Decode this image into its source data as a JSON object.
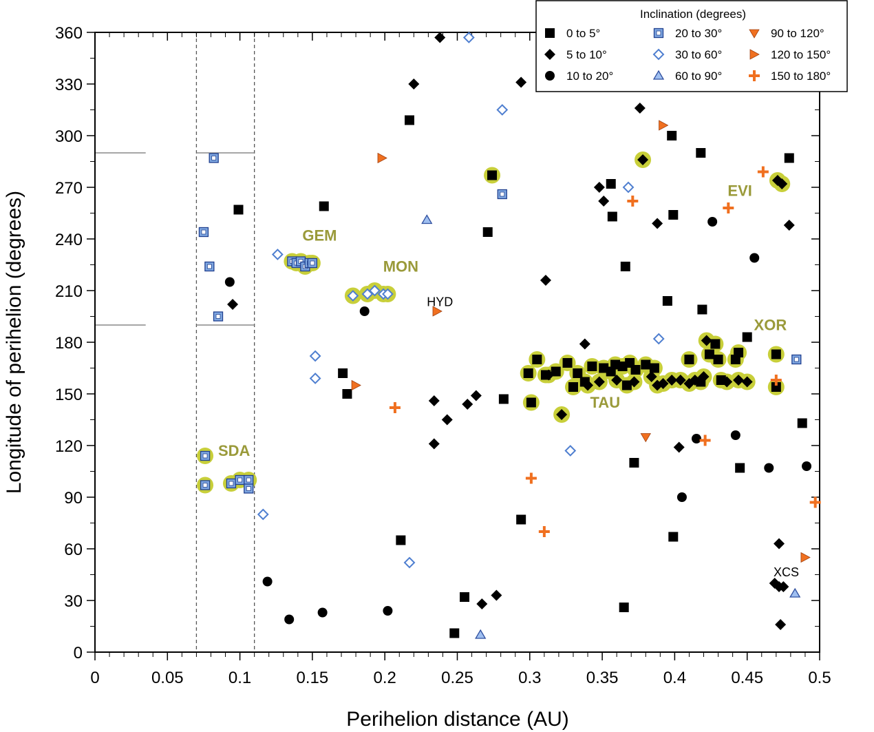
{
  "chart_data": {
    "type": "scatter",
    "xlabel": "Perihelion distance (AU)",
    "ylabel": "Longitude of perihelion (degrees)",
    "xlim": [
      0,
      0.5
    ],
    "ylim": [
      0,
      360
    ],
    "x_ticks": [
      "0",
      "0.05",
      "0.1",
      "0.15",
      "0.2",
      "0.25",
      "0.3",
      "0.35",
      "0.4",
      "0.45",
      "0.5"
    ],
    "y_ticks": [
      "0",
      "30",
      "60",
      "90",
      "120",
      "150",
      "180",
      "210",
      "240",
      "270",
      "300",
      "330",
      "360"
    ],
    "grid": false,
    "reference_lines": {
      "vertical_dashed_x": [
        0.07,
        0.11
      ],
      "horizontal_y": [
        190,
        290
      ]
    },
    "legend": {
      "title": "Inclination (degrees)",
      "placement": "top-right",
      "entries": [
        {
          "label": "0 to  5°",
          "symbol": "square",
          "fill": "#000000",
          "stroke": "#000000"
        },
        {
          "label": "5 to 10°",
          "symbol": "diamond",
          "fill": "#000000",
          "stroke": "#000000"
        },
        {
          "label": "10 to 20°",
          "symbol": "circle",
          "fill": "#000000",
          "stroke": "#000000"
        },
        {
          "label": "20 to 30°",
          "symbol": "square-dot",
          "fill": "#7fa7e0",
          "stroke": "#1f3f8f"
        },
        {
          "label": "30 to 60°",
          "symbol": "diamond-open",
          "fill": "#ffffff",
          "stroke": "#4f7fd0"
        },
        {
          "label": "60 to 90°",
          "symbol": "triangle-up",
          "fill": "#9fbff0",
          "stroke": "#2f4f9f"
        },
        {
          "label": "90 to 120°",
          "symbol": "triangle-down",
          "fill": "#f07020",
          "stroke": "#a04010"
        },
        {
          "label": "120 to 150°",
          "symbol": "triangle-right",
          "fill": "#f07020",
          "stroke": "#a04010"
        },
        {
          "label": "150 to 180°",
          "symbol": "plus",
          "fill": "#f07020",
          "stroke": "#f07020"
        }
      ]
    },
    "highlight_color": "#c8cf3a",
    "shower_label_color": "#9a9a3a",
    "shower_labels": [
      {
        "text": "GEM",
        "x": 0.155,
        "y": 239
      },
      {
        "text": "MON",
        "x": 0.211,
        "y": 221
      },
      {
        "text": "SDA",
        "x": 0.096,
        "y": 114
      },
      {
        "text": "TAU",
        "x": 0.352,
        "y": 142
      },
      {
        "text": "EVI",
        "x": 0.445,
        "y": 265
      },
      {
        "text": "XOR",
        "x": 0.466,
        "y": 187
      }
    ],
    "plain_labels": [
      {
        "text": "HYD",
        "x": 0.238,
        "y": 201
      },
      {
        "text": "XCS",
        "x": 0.477,
        "y": 44
      }
    ],
    "series": [
      {
        "name": "0 to  5°",
        "symbol": "square",
        "points": [
          [
            0.099,
            257
          ],
          [
            0.158,
            259
          ],
          [
            0.171,
            162
          ],
          [
            0.174,
            150
          ],
          [
            0.217,
            309
          ],
          [
            0.211,
            65
          ],
          [
            0.271,
            244
          ],
          [
            0.282,
            147
          ],
          [
            0.294,
            77
          ],
          [
            0.255,
            32
          ],
          [
            0.248,
            11
          ],
          [
            0.356,
            272
          ],
          [
            0.357,
            253
          ],
          [
            0.366,
            224
          ],
          [
            0.365,
            26
          ],
          [
            0.372,
            110
          ],
          [
            0.395,
            204
          ],
          [
            0.398,
            300
          ],
          [
            0.399,
            254
          ],
          [
            0.399,
            67
          ],
          [
            0.418,
            290
          ],
          [
            0.419,
            199
          ],
          [
            0.45,
            183
          ],
          [
            0.445,
            107
          ],
          [
            0.488,
            133
          ],
          [
            0.479,
            287
          ],
          [
            0.274,
            277
          ],
          [
            0.301,
            145
          ],
          [
            0.299,
            162
          ],
          [
            0.305,
            170
          ],
          [
            0.311,
            161
          ],
          [
            0.318,
            163
          ],
          [
            0.326,
            168
          ],
          [
            0.333,
            162
          ],
          [
            0.338,
            157
          ],
          [
            0.343,
            166
          ],
          [
            0.351,
            165
          ],
          [
            0.356,
            163
          ],
          [
            0.359,
            167
          ],
          [
            0.364,
            166
          ],
          [
            0.369,
            168
          ],
          [
            0.373,
            164
          ],
          [
            0.38,
            167
          ],
          [
            0.386,
            165
          ],
          [
            0.367,
            155
          ],
          [
            0.33,
            154
          ],
          [
            0.41,
            170
          ],
          [
            0.418,
            157
          ],
          [
            0.424,
            173
          ],
          [
            0.428,
            179
          ],
          [
            0.43,
            170
          ],
          [
            0.432,
            158
          ],
          [
            0.442,
            170
          ],
          [
            0.444,
            174
          ],
          [
            0.47,
            173
          ],
          [
            0.47,
            154
          ]
        ],
        "highlighted": [
          [
            0.274,
            277
          ],
          [
            0.301,
            145
          ],
          [
            0.299,
            162
          ],
          [
            0.305,
            170
          ],
          [
            0.311,
            161
          ],
          [
            0.318,
            163
          ],
          [
            0.326,
            168
          ],
          [
            0.333,
            162
          ],
          [
            0.338,
            157
          ],
          [
            0.343,
            166
          ],
          [
            0.351,
            165
          ],
          [
            0.356,
            163
          ],
          [
            0.359,
            167
          ],
          [
            0.364,
            166
          ],
          [
            0.369,
            168
          ],
          [
            0.373,
            164
          ],
          [
            0.38,
            167
          ],
          [
            0.386,
            165
          ],
          [
            0.367,
            155
          ],
          [
            0.33,
            154
          ],
          [
            0.41,
            170
          ],
          [
            0.418,
            157
          ],
          [
            0.424,
            173
          ],
          [
            0.428,
            179
          ],
          [
            0.43,
            170
          ],
          [
            0.432,
            158
          ],
          [
            0.442,
            170
          ],
          [
            0.444,
            174
          ],
          [
            0.47,
            173
          ],
          [
            0.47,
            154
          ]
        ]
      },
      {
        "name": "5 to 10°",
        "symbol": "diamond",
        "points": [
          [
            0.095,
            202
          ],
          [
            0.238,
            357
          ],
          [
            0.22,
            330
          ],
          [
            0.294,
            331
          ],
          [
            0.234,
            146
          ],
          [
            0.243,
            135
          ],
          [
            0.234,
            121
          ],
          [
            0.263,
            149
          ],
          [
            0.257,
            144
          ],
          [
            0.267,
            28
          ],
          [
            0.277,
            33
          ],
          [
            0.311,
            216
          ],
          [
            0.338,
            179
          ],
          [
            0.348,
            270
          ],
          [
            0.351,
            262
          ],
          [
            0.376,
            316
          ],
          [
            0.388,
            249
          ],
          [
            0.403,
            119
          ],
          [
            0.469,
            40
          ],
          [
            0.472,
            38
          ],
          [
            0.475,
            38
          ],
          [
            0.473,
            16
          ],
          [
            0.472,
            63
          ],
          [
            0.479,
            248
          ],
          [
            0.322,
            138
          ],
          [
            0.378,
            286
          ],
          [
            0.422,
            181
          ],
          [
            0.471,
            274
          ],
          [
            0.474,
            272
          ],
          [
            0.34,
            155
          ],
          [
            0.348,
            157
          ],
          [
            0.36,
            158
          ],
          [
            0.372,
            157
          ],
          [
            0.384,
            160
          ],
          [
            0.392,
            156
          ],
          [
            0.398,
            158
          ],
          [
            0.404,
            158
          ],
          [
            0.41,
            156
          ],
          [
            0.414,
            158
          ],
          [
            0.42,
            160
          ],
          [
            0.436,
            157
          ],
          [
            0.444,
            158
          ],
          [
            0.45,
            157
          ],
          [
            0.313,
            161
          ],
          [
            0.388,
            155
          ]
        ],
        "highlighted": [
          [
            0.322,
            138
          ],
          [
            0.378,
            286
          ],
          [
            0.422,
            181
          ],
          [
            0.471,
            274
          ],
          [
            0.474,
            272
          ],
          [
            0.34,
            155
          ],
          [
            0.348,
            157
          ],
          [
            0.36,
            158
          ],
          [
            0.372,
            157
          ],
          [
            0.384,
            160
          ],
          [
            0.392,
            156
          ],
          [
            0.398,
            158
          ],
          [
            0.404,
            158
          ],
          [
            0.41,
            156
          ],
          [
            0.414,
            158
          ],
          [
            0.42,
            160
          ],
          [
            0.436,
            157
          ],
          [
            0.444,
            158
          ],
          [
            0.45,
            157
          ],
          [
            0.313,
            161
          ],
          [
            0.388,
            155
          ]
        ]
      },
      {
        "name": "10 to 20°",
        "symbol": "circle",
        "points": [
          [
            0.093,
            215
          ],
          [
            0.186,
            198
          ],
          [
            0.119,
            41
          ],
          [
            0.134,
            19
          ],
          [
            0.157,
            23
          ],
          [
            0.202,
            24
          ],
          [
            0.426,
            250
          ],
          [
            0.455,
            229
          ],
          [
            0.405,
            90
          ],
          [
            0.415,
            124
          ],
          [
            0.442,
            126
          ],
          [
            0.465,
            107
          ],
          [
            0.491,
            108
          ]
        ],
        "highlighted": []
      },
      {
        "name": "20 to 30°",
        "symbol": "square-dot",
        "points": [
          [
            0.082,
            287
          ],
          [
            0.075,
            244
          ],
          [
            0.079,
            224
          ],
          [
            0.085,
            195
          ],
          [
            0.281,
            266
          ],
          [
            0.136,
            227
          ],
          [
            0.139,
            226
          ],
          [
            0.142,
            227
          ],
          [
            0.145,
            224
          ],
          [
            0.148,
            226
          ],
          [
            0.15,
            226
          ],
          [
            0.076,
            114
          ],
          [
            0.076,
            97
          ],
          [
            0.094,
            98
          ],
          [
            0.1,
            100
          ],
          [
            0.106,
            100
          ],
          [
            0.106,
            95
          ],
          [
            0.484,
            170
          ]
        ],
        "highlighted": [
          [
            0.136,
            227
          ],
          [
            0.139,
            226
          ],
          [
            0.142,
            227
          ],
          [
            0.145,
            224
          ],
          [
            0.148,
            226
          ],
          [
            0.15,
            226
          ],
          [
            0.076,
            114
          ],
          [
            0.076,
            97
          ],
          [
            0.094,
            98
          ],
          [
            0.1,
            100
          ],
          [
            0.106,
            100
          ]
        ]
      },
      {
        "name": "30 to 60°",
        "symbol": "diamond-open",
        "points": [
          [
            0.126,
            231
          ],
          [
            0.152,
            172
          ],
          [
            0.152,
            159
          ],
          [
            0.116,
            80
          ],
          [
            0.217,
            52
          ],
          [
            0.258,
            357
          ],
          [
            0.281,
            315
          ],
          [
            0.328,
            117
          ],
          [
            0.368,
            270
          ],
          [
            0.389,
            182
          ],
          [
            0.178,
            207
          ],
          [
            0.188,
            208
          ],
          [
            0.193,
            210
          ],
          [
            0.199,
            208
          ],
          [
            0.202,
            208
          ]
        ],
        "highlighted": [
          [
            0.178,
            207
          ],
          [
            0.188,
            208
          ],
          [
            0.193,
            210
          ],
          [
            0.199,
            208
          ],
          [
            0.202,
            208
          ]
        ]
      },
      {
        "name": "60 to 90°",
        "symbol": "triangle-up",
        "points": [
          [
            0.229,
            251
          ],
          [
            0.266,
            10
          ],
          [
            0.483,
            34
          ]
        ],
        "highlighted": []
      },
      {
        "name": "90 to 120°",
        "symbol": "triangle-down",
        "points": [
          [
            0.38,
            125
          ]
        ],
        "highlighted": []
      },
      {
        "name": "120 to 150°",
        "symbol": "triangle-right",
        "points": [
          [
            0.198,
            287
          ],
          [
            0.236,
            198
          ],
          [
            0.18,
            155
          ],
          [
            0.392,
            306
          ],
          [
            0.49,
            55
          ]
        ],
        "highlighted": []
      },
      {
        "name": "150 to 180°",
        "symbol": "plus",
        "points": [
          [
            0.207,
            142
          ],
          [
            0.301,
            101
          ],
          [
            0.31,
            70
          ],
          [
            0.371,
            262
          ],
          [
            0.421,
            123
          ],
          [
            0.437,
            258
          ],
          [
            0.461,
            279
          ],
          [
            0.47,
            158
          ],
          [
            0.497,
            87
          ]
        ],
        "highlighted": []
      }
    ]
  }
}
